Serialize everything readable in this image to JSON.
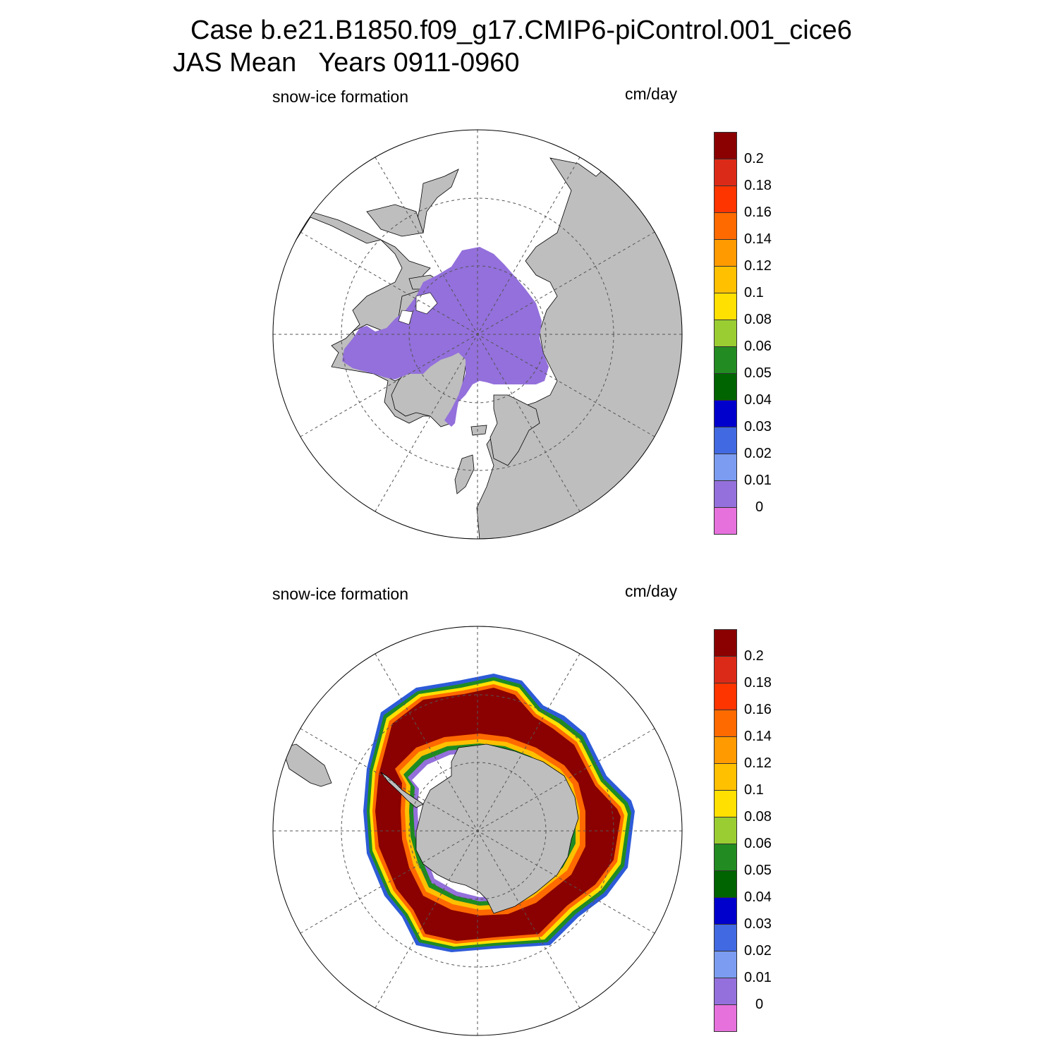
{
  "figure": {
    "title_line1": "Case b.e21.B1850.f09_g17.CMIP6-piControl.001_cice6",
    "title_line2": "JAS Mean   Years 0911-0960"
  },
  "panels": [
    {
      "id": "north",
      "hemisphere": "Northern Hemisphere (polar stereographic)",
      "left_label": "snow-ice formation",
      "right_label": "cm/day",
      "land_color": "#bebebe",
      "ocean_color": "#ffffff"
    },
    {
      "id": "south",
      "hemisphere": "Southern Hemisphere (polar stereographic)",
      "left_label": "snow-ice formation",
      "right_label": "cm/day",
      "land_color": "#bebebe",
      "ocean_color": "#ffffff"
    }
  ],
  "colorbar": {
    "units": "cm/day",
    "levels": [
      "0",
      "0.01",
      "0.02",
      "0.03",
      "0.04",
      "0.05",
      "0.06",
      "0.08",
      "0.1",
      "0.12",
      "0.14",
      "0.16",
      "0.18",
      "0.2"
    ],
    "colors": [
      "#e671dd",
      "#9370db",
      "#7b9cf0",
      "#4169e1",
      "#0000cd",
      "#006400",
      "#228b22",
      "#9acd32",
      "#ffe000",
      "#ffc000",
      "#ff9b00",
      "#ff6a00",
      "#ff3500",
      "#dc2a18",
      "#8b0000"
    ]
  },
  "chart_data": {
    "type": "heatmap",
    "variable": "snow-ice formation",
    "units": "cm/day",
    "north": {
      "dominant_value_bin": "0–0.01",
      "note_range": [
        0,
        0.01
      ]
    },
    "south": {
      "dominant_value_bin": ">0.2",
      "edge_range": [
        0.01,
        0.2
      ]
    }
  }
}
